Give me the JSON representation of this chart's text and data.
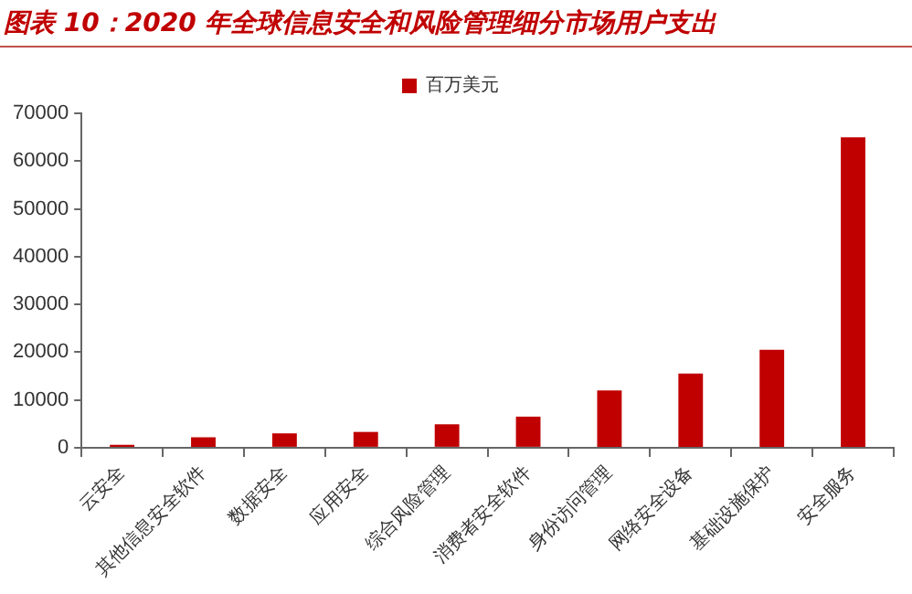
{
  "chart_data": {
    "type": "bar",
    "title": "图表 10：2020 年全球信息安全和风险管理细分市场用户支出",
    "categories": [
      "云安全",
      "其他信息安全软件",
      "数据安全",
      "应用安全",
      "综合风险管理",
      "消费者安全软件",
      "身份访问管理",
      "网络安全设备",
      "基础设施保护",
      "安全服务"
    ],
    "series": [
      {
        "name": "百万美元",
        "color": "#c00000",
        "values": [
          600,
          2200,
          3000,
          3300,
          4900,
          6500,
          12000,
          15500,
          20500,
          65000
        ]
      }
    ],
    "ylim": [
      0,
      70000
    ],
    "yticks": [
      0,
      10000,
      20000,
      30000,
      40000,
      50000,
      60000,
      70000
    ],
    "grid": false,
    "legend": "top"
  }
}
